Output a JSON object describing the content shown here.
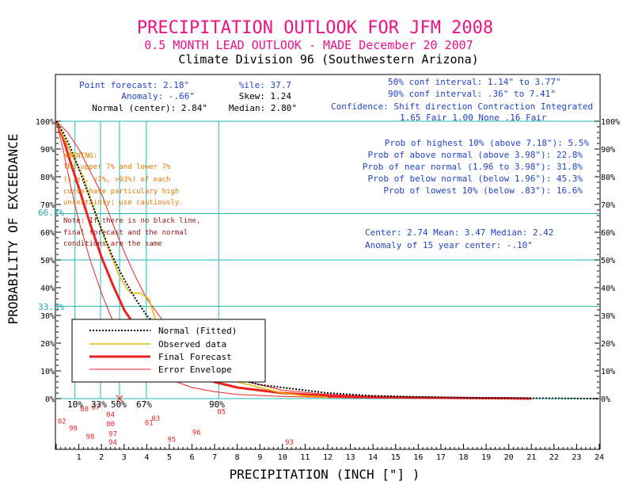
{
  "header": {
    "title": "PRECIPITATION OUTLOOK FOR JFM 2008",
    "subtitle": "0.5 MONTH LEAD OUTLOOK  - MADE December 20 2007",
    "division": "Climate Division 96 (Southwestern Arizona)"
  },
  "stats": {
    "point_forecast": "Point forecast: 2.18\"",
    "anomaly": "Anomaly: -.66\"",
    "normal_center": "Normal (center): 2.84\"",
    "percentile": "%ile: 37.7",
    "skew": "Skew: 1.24",
    "median": "Median: 2.80\"",
    "conf50": "50% conf interval: 1.14\" to 3.77\"",
    "conf90": "90% conf interval: .36\" to 7.41\"",
    "confidence_header": "Confidence: Shift direction   Contraction   Integrated",
    "confidence_values": "1.65 Fair        1.00 None      .16 Fair"
  },
  "probabilities": {
    "highest10": "Prob of highest 10% (above 7.18\"): 5.5%",
    "above_normal": "Prob of above normal (above 3.98\"): 22.8%",
    "near_normal": "Prob of near normal (1.96 to 3.98\"): 31.8%",
    "below_normal": "Prob of below normal (below 1.96\"): 45.3%",
    "lowest10": "Prob of lowest 10% (below .83\"): 16.6%"
  },
  "center_info": {
    "line1": "Center: 2.74 Mean: 3.47 Median: 2.42",
    "line2": "Anomaly of 15 year center: -.10\""
  },
  "warning": {
    "lines": [
      "WARNING:",
      "The upper 7% and lower 7%",
      "(i.e., <7%, >93%) of each",
      "curve have particulary high",
      "uncertainty; use cautiously."
    ]
  },
  "note": {
    "lines": [
      "Note: If there is no black line,",
      "final forecast and the normal",
      "conditions are the same"
    ]
  },
  "marker_labels": {
    "p10": "10%",
    "p33": "33%",
    "p50": "50%",
    "p67": "67%",
    "p90": "90%",
    "y66": "66.7%",
    "y33": "33.3%"
  },
  "chart_data": {
    "type": "line",
    "xlabel": "PRECIPITATION (INCH [\"] )",
    "ylabel": "PROBABILITY OF EXCEEDANCE",
    "xlim": [
      0,
      24
    ],
    "ylim": [
      0,
      100
    ],
    "x_ticks": [
      "1",
      "2",
      "3",
      "4",
      "5",
      "6",
      "7",
      "8",
      "9",
      "10",
      "11",
      "12",
      "13",
      "14",
      "15",
      "16",
      "17",
      "18",
      "19",
      "20",
      "21",
      "22",
      "23",
      "24"
    ],
    "y_ticks": [
      "0%",
      "10%",
      "20%",
      "30%",
      "40%",
      "50%",
      "60%",
      "70%",
      "80%",
      "90%",
      "100%"
    ],
    "reference_lines_y": [
      66.7,
      33.3
    ],
    "quantile_markers_x": [
      {
        "label": "10%",
        "x": 0.83
      },
      {
        "label": "33%",
        "x": 1.96
      },
      {
        "label": "50%",
        "x": 2.8
      },
      {
        "label": "67%",
        "x": 3.98
      },
      {
        "label": "90%",
        "x": 7.18
      }
    ],
    "legend": [
      "Normal (Fitted)",
      "Observed data",
      "Final Forecast",
      "Error Envelope"
    ],
    "legend_position": "lower-left",
    "series": [
      {
        "name": "Normal (Fitted)",
        "color": "#000000",
        "style": "dotted",
        "x": [
          0,
          0.3,
          0.6,
          1,
          1.5,
          2,
          2.5,
          3,
          3.5,
          4,
          5,
          6,
          7,
          8,
          9,
          10,
          11,
          12,
          14,
          16,
          18,
          20,
          22,
          24
        ],
        "y": [
          100,
          96,
          91,
          83,
          72,
          61,
          51,
          43,
          36,
          30,
          21,
          15,
          10,
          7,
          5,
          4,
          3,
          2,
          1,
          0.6,
          0.3,
          0.2,
          0.1,
          0
        ]
      },
      {
        "name": "Observed data",
        "color": "#e6b800",
        "style": "solid",
        "x": [
          0,
          0.4,
          0.8,
          1.2,
          1.6,
          2,
          2.4,
          2.8,
          3.1,
          3.3,
          3.7,
          4.1,
          4.4,
          4.8,
          5.3,
          6,
          7,
          8,
          9,
          10,
          11,
          12
        ],
        "y": [
          100,
          93,
          86,
          80,
          70,
          61,
          52,
          44,
          40,
          38,
          38,
          36,
          28,
          23,
          18,
          14,
          10,
          6,
          4,
          2,
          1,
          0.5
        ]
      },
      {
        "name": "Final Forecast",
        "color": "#ee2222",
        "style": "solid",
        "x": [
          0,
          0.3,
          0.6,
          1,
          1.5,
          2,
          2.5,
          3,
          3.5,
          4,
          5,
          6,
          7,
          8,
          9,
          10,
          11,
          12,
          14,
          16,
          18,
          20,
          21
        ],
        "y": [
          100,
          94,
          86,
          76,
          63,
          51,
          41,
          32,
          26,
          21,
          14,
          9,
          6,
          4,
          3,
          2,
          1.5,
          1,
          0.6,
          0.4,
          0.2,
          0.1,
          0
        ]
      },
      {
        "name": "Error Envelope Upper",
        "color": "#ee2222",
        "style": "thin",
        "x": [
          0,
          0.5,
          1,
          1.5,
          2,
          2.5,
          3,
          3.5,
          4,
          5,
          6,
          7,
          8,
          9,
          10,
          12,
          14,
          17
        ],
        "y": [
          100,
          96,
          90,
          82,
          74,
          63,
          53,
          44,
          36,
          25,
          17,
          11,
          7,
          5,
          3,
          1.5,
          0.8,
          0
        ]
      },
      {
        "name": "Error Envelope Lower",
        "color": "#ee2222",
        "style": "thin",
        "x": [
          0,
          0.3,
          0.6,
          1,
          1.5,
          2,
          2.5,
          3,
          3.5,
          4,
          5,
          6,
          7,
          8,
          10,
          12,
          14,
          17
        ],
        "y": [
          100,
          90,
          78,
          64,
          50,
          38,
          28,
          21,
          16,
          12,
          7,
          4,
          2.5,
          1.5,
          0.8,
          0.4,
          0.2,
          0
        ]
      }
    ],
    "year_labels": [
      {
        "t": "02",
        "x": 0.25,
        "y": -9
      },
      {
        "t": "99",
        "x": 0.75,
        "y": -11.5
      },
      {
        "t": "98",
        "x": 1.5,
        "y": -14.5
      },
      {
        "t": "08",
        "x": 1.25,
        "y": -4.5
      },
      {
        "t": "07",
        "x": 1.75,
        "y": -4
      },
      {
        "t": "04",
        "x": 2.4,
        "y": -6.5
      },
      {
        "t": "00",
        "x": 2.4,
        "y": -10
      },
      {
        "t": "97",
        "x": 2.5,
        "y": -13.5
      },
      {
        "t": "94",
        "x": 2.5,
        "y": -16.5
      },
      {
        "t": "01",
        "x": 4.1,
        "y": -9.5
      },
      {
        "t": "03",
        "x": 4.4,
        "y": -8
      },
      {
        "t": "95",
        "x": 5.1,
        "y": -15.5
      },
      {
        "t": "96",
        "x": 6.2,
        "y": -13
      },
      {
        "t": "05",
        "x": 7.3,
        "y": -5.5
      },
      {
        "t": "93",
        "x": 10.3,
        "y": -16.5
      }
    ]
  }
}
